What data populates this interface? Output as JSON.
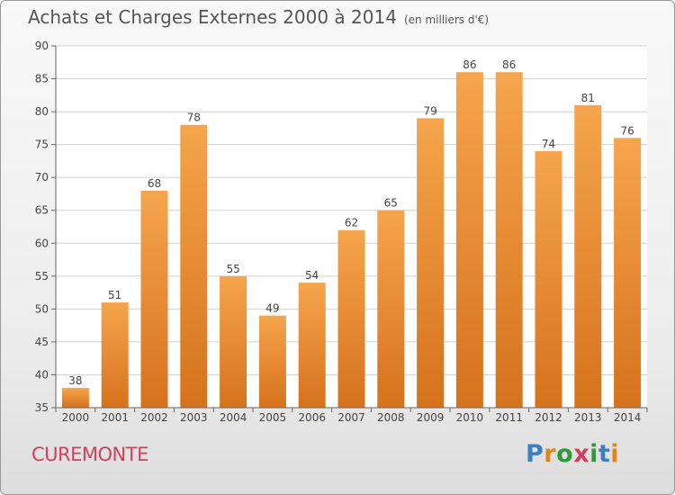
{
  "header": {
    "title": "Achats et Charges Externes 2000 à 2014",
    "subtitle": "(en milliers d'€)"
  },
  "footer": {
    "commune": "CUREMONTE",
    "logo_text": "Proxiti"
  },
  "colors": {
    "bar_top": "#f5a54d",
    "bar_bottom": "#d6721c",
    "grid": "#d0d0d0",
    "commune": "#d2405d"
  },
  "chart_data": {
    "type": "bar",
    "categories": [
      "2000",
      "2001",
      "2002",
      "2003",
      "2004",
      "2005",
      "2006",
      "2007",
      "2008",
      "2009",
      "2010",
      "2011",
      "2012",
      "2013",
      "2014"
    ],
    "values": [
      38,
      51,
      68,
      78,
      55,
      49,
      54,
      62,
      65,
      79,
      86,
      86,
      74,
      81,
      76
    ],
    "ylim": [
      35,
      90
    ],
    "yticks": [
      35,
      40,
      45,
      50,
      55,
      60,
      65,
      70,
      75,
      80,
      85,
      90
    ],
    "grid": true,
    "data_labels": true
  }
}
